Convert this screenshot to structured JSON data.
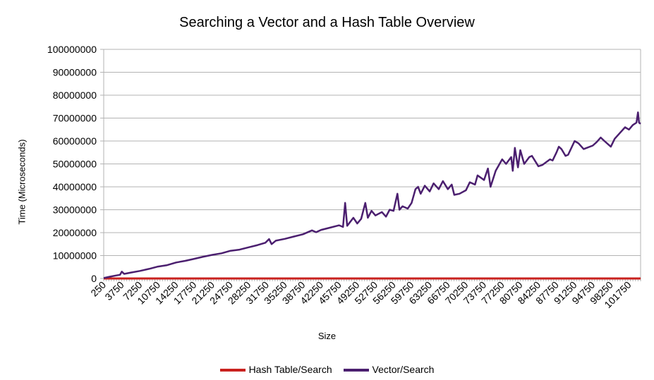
{
  "chart_data": {
    "type": "line",
    "title": "Searching a Vector and a Hash Table Overview",
    "xlabel": "Size",
    "ylabel": "Time (Microseconds)",
    "ylim": [
      0,
      100000000
    ],
    "y_ticks": [
      "0",
      "10000000",
      "20000000",
      "30000000",
      "40000000",
      "50000000",
      "60000000",
      "70000000",
      "80000000",
      "90000000",
      "100000000"
    ],
    "x_range": [
      250,
      104000
    ],
    "x_tick_labels": [
      "250",
      "3750",
      "7250",
      "10750",
      "14250",
      "17750",
      "21250",
      "24750",
      "28250",
      "31750",
      "35250",
      "38750",
      "42250",
      "45750",
      "49250",
      "52750",
      "56250",
      "59750",
      "63250",
      "66750",
      "70250",
      "73750",
      "77250",
      "80750",
      "84250",
      "87750",
      "91250",
      "94750",
      "98250",
      "101750"
    ],
    "grid": "horizontal",
    "legend_position": "bottom",
    "series": [
      {
        "name": "Hash Table/Search",
        "color": "#c9211e",
        "points": [
          [
            250,
            0
          ],
          [
            104000,
            0
          ]
        ]
      },
      {
        "name": "Vector/Search",
        "color": "#4b1f6f",
        "points": [
          [
            250,
            200000
          ],
          [
            1500,
            800000
          ],
          [
            2600,
            1300000
          ],
          [
            3400,
            1600000
          ],
          [
            3750,
            3000000
          ],
          [
            4200,
            2000000
          ],
          [
            5500,
            2600000
          ],
          [
            7250,
            3300000
          ],
          [
            9000,
            4200000
          ],
          [
            10750,
            5200000
          ],
          [
            12500,
            5800000
          ],
          [
            14250,
            7000000
          ],
          [
            16000,
            7700000
          ],
          [
            17750,
            8600000
          ],
          [
            19500,
            9500000
          ],
          [
            21250,
            10300000
          ],
          [
            23000,
            11000000
          ],
          [
            24750,
            12100000
          ],
          [
            26500,
            12600000
          ],
          [
            28250,
            13600000
          ],
          [
            30000,
            14600000
          ],
          [
            31500,
            15600000
          ],
          [
            32200,
            17200000
          ],
          [
            32700,
            15000000
          ],
          [
            33500,
            16500000
          ],
          [
            35250,
            17300000
          ],
          [
            37000,
            18300000
          ],
          [
            38750,
            19300000
          ],
          [
            40500,
            21000000
          ],
          [
            41300,
            20200000
          ],
          [
            42250,
            21200000
          ],
          [
            44000,
            22200000
          ],
          [
            45750,
            23200000
          ],
          [
            46500,
            22500000
          ],
          [
            46900,
            33000000
          ],
          [
            47300,
            23000000
          ],
          [
            48500,
            26500000
          ],
          [
            49250,
            24000000
          ],
          [
            50000,
            26000000
          ],
          [
            50800,
            33000000
          ],
          [
            51300,
            26500000
          ],
          [
            52000,
            29500000
          ],
          [
            52750,
            27500000
          ],
          [
            54000,
            29000000
          ],
          [
            54800,
            27000000
          ],
          [
            55500,
            30000000
          ],
          [
            56250,
            29500000
          ],
          [
            57000,
            37000000
          ],
          [
            57400,
            30000000
          ],
          [
            58000,
            31500000
          ],
          [
            59000,
            30500000
          ],
          [
            59750,
            33000000
          ],
          [
            60500,
            39000000
          ],
          [
            61000,
            40000000
          ],
          [
            61500,
            37000000
          ],
          [
            62300,
            40500000
          ],
          [
            63250,
            38000000
          ],
          [
            64000,
            41500000
          ],
          [
            65000,
            39000000
          ],
          [
            65800,
            42500000
          ],
          [
            66750,
            39000000
          ],
          [
            67500,
            41000000
          ],
          [
            68000,
            36500000
          ],
          [
            69000,
            37000000
          ],
          [
            70250,
            38500000
          ],
          [
            71000,
            42000000
          ],
          [
            72000,
            41000000
          ],
          [
            72500,
            45000000
          ],
          [
            73750,
            43000000
          ],
          [
            74500,
            48000000
          ],
          [
            75000,
            40000000
          ],
          [
            76000,
            47000000
          ],
          [
            77250,
            52000000
          ],
          [
            78000,
            50000000
          ],
          [
            79000,
            53000000
          ],
          [
            79300,
            47000000
          ],
          [
            79700,
            57000000
          ],
          [
            80300,
            48500000
          ],
          [
            80750,
            56000000
          ],
          [
            81500,
            50000000
          ],
          [
            82500,
            53000000
          ],
          [
            83000,
            53500000
          ],
          [
            84250,
            49000000
          ],
          [
            85000,
            49500000
          ],
          [
            86500,
            52000000
          ],
          [
            87000,
            51500000
          ],
          [
            87750,
            55000000
          ],
          [
            88200,
            57500000
          ],
          [
            88700,
            56500000
          ],
          [
            89500,
            53500000
          ],
          [
            90000,
            54000000
          ],
          [
            91250,
            60000000
          ],
          [
            92000,
            59000000
          ],
          [
            93000,
            56500000
          ],
          [
            94750,
            58000000
          ],
          [
            95500,
            59500000
          ],
          [
            96300,
            61500000
          ],
          [
            97000,
            60000000
          ],
          [
            98250,
            57500000
          ],
          [
            99000,
            61000000
          ],
          [
            100000,
            63500000
          ],
          [
            101000,
            66000000
          ],
          [
            101750,
            65000000
          ],
          [
            102500,
            67000000
          ],
          [
            103200,
            68000000
          ],
          [
            103500,
            72500000
          ],
          [
            103700,
            68000000
          ],
          [
            104000,
            67500000
          ]
        ]
      }
    ]
  }
}
